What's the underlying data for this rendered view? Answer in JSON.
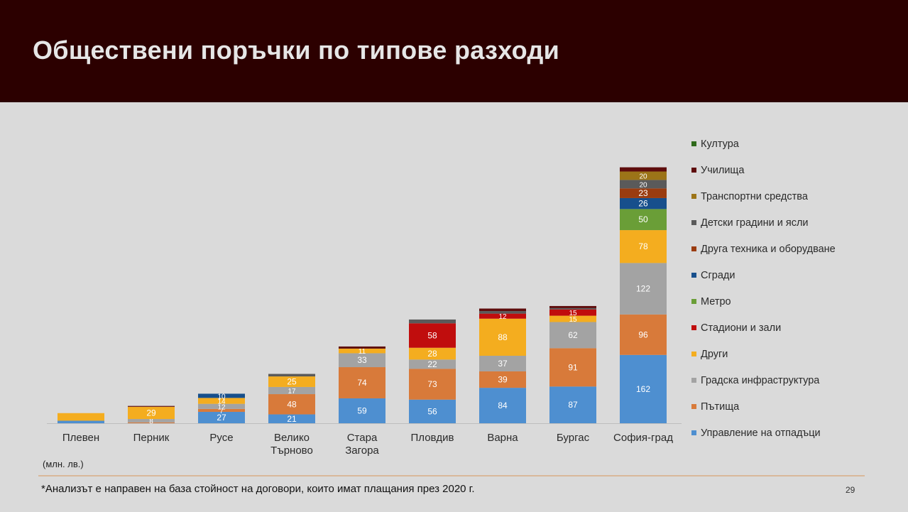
{
  "slide": {
    "title": "Обществени поръчки по типове разходи",
    "unit_note": "(млн. лв.)",
    "footnote": "*Анализът е направен на база стойност на договори, които имат плащания през 2020 г.",
    "page_number": "29"
  },
  "chart_data": {
    "type": "bar",
    "stacked": true,
    "title": "",
    "xlabel": "",
    "ylabel": "",
    "legend_position": "right",
    "grid": false,
    "ylim": [
      0,
      640
    ],
    "categories": [
      "Плевен",
      "Перник",
      "Русе",
      "Велико Търново",
      "Стара Загора",
      "Пловдив",
      "Варна",
      "Бургас",
      "София-град"
    ],
    "category_lines": [
      [
        "Плевен"
      ],
      [
        "Перник"
      ],
      [
        "Русе"
      ],
      [
        "Велико",
        "Търново"
      ],
      [
        "Стара",
        "Загора"
      ],
      [
        "Пловдив"
      ],
      [
        "Варна"
      ],
      [
        "Бургас"
      ],
      [
        "София-град"
      ]
    ],
    "series": [
      {
        "name": "Управление на отпадъци",
        "color": "#4e8fd0",
        "values": [
          6,
          0,
          27,
          21,
          59,
          56,
          84,
          87,
          162
        ],
        "labels": [
          "",
          "",
          "27",
          "21",
          "59",
          "56",
          "84",
          "87",
          "162"
        ]
      },
      {
        "name": "Пътища",
        "color": "#d87a3a",
        "values": [
          0,
          2,
          7,
          48,
          74,
          73,
          39,
          91,
          96
        ],
        "labels": [
          "",
          "",
          "7",
          "48",
          "74",
          "73",
          "39",
          "91",
          "96"
        ]
      },
      {
        "name": "Градска инфраструктура",
        "color": "#a3a3a3",
        "values": [
          0,
          8,
          12,
          17,
          33,
          22,
          37,
          62,
          122
        ],
        "labels": [
          "",
          "8",
          "12",
          "17",
          "33",
          "22",
          "37",
          "62",
          "122"
        ]
      },
      {
        "name": "Други",
        "color": "#f4ad1f",
        "values": [
          18,
          29,
          14,
          25,
          11,
          28,
          88,
          15,
          78
        ],
        "labels": [
          "",
          "29",
          "14",
          "25",
          "11",
          "28",
          "88",
          "15",
          "78"
        ]
      },
      {
        "name": "Стадиони и зали",
        "color": "#c00d0d",
        "values": [
          0,
          0,
          0,
          0,
          0,
          58,
          12,
          15,
          0
        ],
        "labels": [
          "",
          "",
          "",
          "",
          "",
          "58",
          "12",
          "15",
          ""
        ]
      },
      {
        "name": "Метро",
        "color": "#6a9e37",
        "values": [
          0,
          0,
          0,
          0,
          0,
          0,
          0,
          0,
          50
        ],
        "labels": [
          "",
          "",
          "",
          "",
          "",
          "",
          "",
          "",
          "50"
        ]
      },
      {
        "name": "Сгради",
        "color": "#174f8c",
        "values": [
          0,
          0,
          10,
          0,
          0,
          0,
          0,
          0,
          26
        ],
        "labels": [
          "",
          "",
          "10",
          "",
          "",
          "",
          "",
          "",
          "26"
        ]
      },
      {
        "name": "Друга техника и оборудване",
        "color": "#9a3c10",
        "values": [
          0,
          0,
          0,
          0,
          0,
          0,
          0,
          0,
          23
        ],
        "labels": [
          "",
          "",
          "",
          "",
          "",
          "",
          "",
          "",
          "23"
        ]
      },
      {
        "name": "Детски градини и ясли",
        "color": "#5a5a5a",
        "values": [
          0,
          0,
          0,
          6,
          0,
          9,
          6,
          3,
          20
        ],
        "labels": [
          "",
          "",
          "",
          "",
          "",
          "",
          "",
          "",
          "20"
        ]
      },
      {
        "name": "Транспортни средства",
        "color": "#9c7418",
        "values": [
          0,
          0,
          0,
          0,
          0,
          0,
          0,
          0,
          20
        ],
        "labels": [
          "",
          "",
          "",
          "",
          "",
          "",
          "",
          "",
          "20"
        ]
      },
      {
        "name": "Училища",
        "color": "#5e0c0c",
        "values": [
          0,
          2,
          0,
          0,
          5,
          0,
          6,
          5,
          10
        ],
        "labels": [
          "",
          "",
          "",
          "",
          "",
          "",
          "",
          "",
          ""
        ]
      },
      {
        "name": "Култура",
        "color": "#2f6a1c",
        "values": [
          0,
          0,
          0,
          0,
          0,
          0,
          0,
          0,
          0
        ],
        "labels": [
          "",
          "",
          "",
          "",
          "",
          "",
          "",
          "",
          ""
        ]
      }
    ]
  }
}
